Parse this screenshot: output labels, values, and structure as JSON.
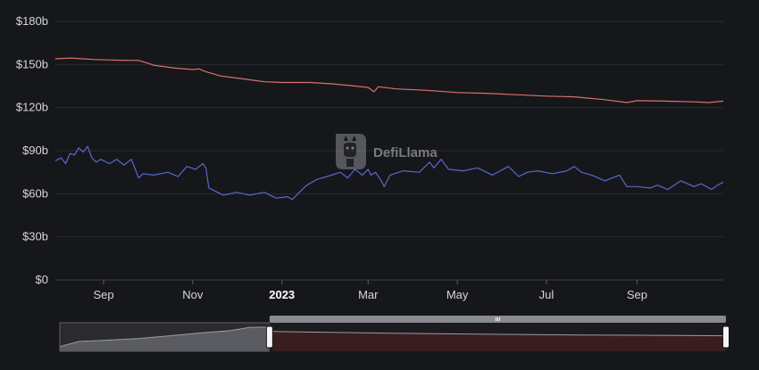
{
  "chart_data": {
    "type": "line",
    "ylim": [
      0,
      180
    ],
    "y_ticks": [
      0,
      30,
      60,
      90,
      120,
      150,
      180
    ],
    "y_tick_labels": [
      "$0",
      "$30b",
      "$60b",
      "$90b",
      "$120b",
      "$150b",
      "$180b"
    ],
    "x_range": [
      "2022-07-30",
      "2023-10-30"
    ],
    "x_ticks": [
      {
        "date": "2022-09-01",
        "label": "Sep",
        "bold": false
      },
      {
        "date": "2022-11-01",
        "label": "Nov",
        "bold": false
      },
      {
        "date": "2023-01-01",
        "label": "2023",
        "bold": true
      },
      {
        "date": "2023-03-01",
        "label": "Mar",
        "bold": false
      },
      {
        "date": "2023-05-01",
        "label": "May",
        "bold": false
      },
      {
        "date": "2023-07-01",
        "label": "Jul",
        "bold": false
      },
      {
        "date": "2023-09-01",
        "label": "Sep",
        "bold": false
      }
    ],
    "grid": true,
    "watermark": "DefiLlama",
    "series": [
      {
        "color": "#d9726b",
        "points": [
          [
            "2022-07-30",
            154
          ],
          [
            "2022-08-10",
            154.5
          ],
          [
            "2022-08-25",
            153.5
          ],
          [
            "2022-09-10",
            153
          ],
          [
            "2022-09-25",
            152.8
          ],
          [
            "2022-10-01",
            151
          ],
          [
            "2022-10-05",
            149.5
          ],
          [
            "2022-10-20",
            147.5
          ],
          [
            "2022-11-01",
            146.5
          ],
          [
            "2022-11-05",
            147
          ],
          [
            "2022-11-10",
            145
          ],
          [
            "2022-11-20",
            142
          ],
          [
            "2022-12-05",
            140
          ],
          [
            "2022-12-20",
            138
          ],
          [
            "2023-01-01",
            137.5
          ],
          [
            "2023-01-20",
            137.5
          ],
          [
            "2023-02-05",
            136.5
          ],
          [
            "2023-02-20",
            135
          ],
          [
            "2023-03-01",
            134
          ],
          [
            "2023-03-05",
            131
          ],
          [
            "2023-03-08",
            134.5
          ],
          [
            "2023-03-20",
            133
          ],
          [
            "2023-04-10",
            132
          ],
          [
            "2023-05-01",
            130.5
          ],
          [
            "2023-05-20",
            130
          ],
          [
            "2023-06-10",
            129
          ],
          [
            "2023-07-01",
            128
          ],
          [
            "2023-07-20",
            127.5
          ],
          [
            "2023-08-10",
            125.5
          ],
          [
            "2023-08-25",
            123.5
          ],
          [
            "2023-09-01",
            124.8
          ],
          [
            "2023-09-20",
            124.5
          ],
          [
            "2023-10-10",
            124
          ],
          [
            "2023-10-20",
            123.5
          ],
          [
            "2023-10-30",
            124.5
          ]
        ]
      },
      {
        "color": "#5b67c9",
        "points": [
          [
            "2022-07-30",
            83
          ],
          [
            "2022-08-03",
            85
          ],
          [
            "2022-08-06",
            81
          ],
          [
            "2022-08-09",
            88
          ],
          [
            "2022-08-12",
            87
          ],
          [
            "2022-08-15",
            92
          ],
          [
            "2022-08-18",
            89
          ],
          [
            "2022-08-21",
            93
          ],
          [
            "2022-08-24",
            85
          ],
          [
            "2022-08-27",
            82
          ],
          [
            "2022-08-30",
            84
          ],
          [
            "2022-09-05",
            81
          ],
          [
            "2022-09-10",
            84
          ],
          [
            "2022-09-15",
            80
          ],
          [
            "2022-09-20",
            84
          ],
          [
            "2022-09-25",
            71
          ],
          [
            "2022-09-28",
            74
          ],
          [
            "2022-10-05",
            73
          ],
          [
            "2022-10-15",
            75
          ],
          [
            "2022-10-22",
            72
          ],
          [
            "2022-10-28",
            79
          ],
          [
            "2022-11-03",
            77
          ],
          [
            "2022-11-08",
            81
          ],
          [
            "2022-11-10",
            78
          ],
          [
            "2022-11-12",
            64
          ],
          [
            "2022-11-16",
            62
          ],
          [
            "2022-11-22",
            59
          ],
          [
            "2022-12-01",
            61
          ],
          [
            "2022-12-10",
            59
          ],
          [
            "2022-12-20",
            61
          ],
          [
            "2022-12-28",
            57
          ],
          [
            "2023-01-05",
            58
          ],
          [
            "2023-01-08",
            56
          ],
          [
            "2023-01-12",
            60
          ],
          [
            "2023-01-18",
            66
          ],
          [
            "2023-01-25",
            70
          ],
          [
            "2023-02-01",
            72
          ],
          [
            "2023-02-10",
            75
          ],
          [
            "2023-02-15",
            71
          ],
          [
            "2023-02-20",
            77
          ],
          [
            "2023-02-25",
            73
          ],
          [
            "2023-03-01",
            77
          ],
          [
            "2023-03-03",
            73
          ],
          [
            "2023-03-06",
            75
          ],
          [
            "2023-03-10",
            69
          ],
          [
            "2023-03-12",
            65
          ],
          [
            "2023-03-16",
            73
          ],
          [
            "2023-03-25",
            76
          ],
          [
            "2023-04-05",
            75
          ],
          [
            "2023-04-12",
            82
          ],
          [
            "2023-04-15",
            78
          ],
          [
            "2023-04-20",
            84
          ],
          [
            "2023-04-25",
            77
          ],
          [
            "2023-05-05",
            76
          ],
          [
            "2023-05-15",
            78
          ],
          [
            "2023-05-25",
            73
          ],
          [
            "2023-06-05",
            79
          ],
          [
            "2023-06-12",
            72
          ],
          [
            "2023-06-18",
            75
          ],
          [
            "2023-06-25",
            76
          ],
          [
            "2023-07-05",
            74
          ],
          [
            "2023-07-15",
            76
          ],
          [
            "2023-07-20",
            79
          ],
          [
            "2023-07-25",
            75
          ],
          [
            "2023-08-01",
            73
          ],
          [
            "2023-08-10",
            69
          ],
          [
            "2023-08-20",
            73
          ],
          [
            "2023-08-25",
            65
          ],
          [
            "2023-09-01",
            65
          ],
          [
            "2023-09-10",
            64
          ],
          [
            "2023-09-15",
            66
          ],
          [
            "2023-09-22",
            63
          ],
          [
            "2023-10-01",
            69
          ],
          [
            "2023-10-10",
            65
          ],
          [
            "2023-10-15",
            67
          ],
          [
            "2023-10-22",
            63
          ],
          [
            "2023-10-26",
            66
          ],
          [
            "2023-10-30",
            68
          ]
        ]
      }
    ],
    "brush": {
      "full_range": [
        "2022-01-01",
        "2023-10-30"
      ],
      "selected_range": [
        "2022-07-30",
        "2023-10-30"
      ],
      "overview_points": [
        [
          "2022-01-01",
          30
        ],
        [
          "2022-01-20",
          62
        ],
        [
          "2022-02-15",
          70
        ],
        [
          "2022-03-20",
          80
        ],
        [
          "2022-04-20",
          97
        ],
        [
          "2022-05-20",
          115
        ],
        [
          "2022-06-20",
          130
        ],
        [
          "2022-07-10",
          150
        ],
        [
          "2022-07-20",
          152
        ],
        [
          "2022-07-29",
          152
        ],
        [
          "2022-08-02",
          125
        ],
        [
          "2022-08-25",
          122
        ],
        [
          "2022-09-30",
          119
        ],
        [
          "2022-11-20",
          115
        ],
        [
          "2023-01-20",
          110
        ],
        [
          "2023-03-20",
          107
        ],
        [
          "2023-06-01",
          103
        ],
        [
          "2023-08-01",
          101
        ],
        [
          "2023-10-30",
          98
        ]
      ],
      "left_color": "#5b5c61",
      "right_color": "#3a1e1f",
      "handle_bar_color": "#8a8b90"
    }
  }
}
